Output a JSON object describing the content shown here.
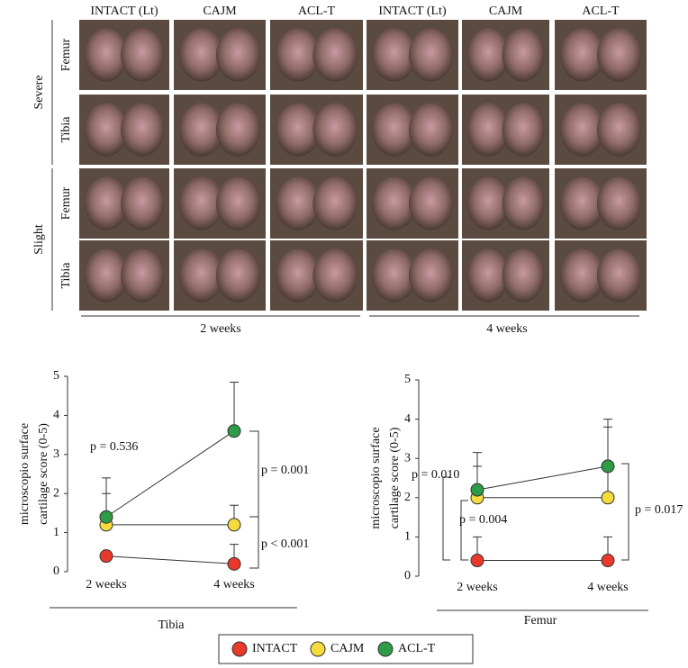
{
  "photo_panel": {
    "columns": [
      "INTACT (Lt)",
      "CAJM",
      "ACL-T",
      "INTACT (Lt)",
      "CAJM",
      "ACL-T"
    ],
    "groups": [
      {
        "label": "Severe",
        "rows": [
          "Femur",
          "Tibia"
        ]
      },
      {
        "label": "Slight",
        "rows": [
          "Femur",
          "Tibia"
        ]
      }
    ],
    "periods": [
      "2 weeks",
      "4 weeks"
    ]
  },
  "legend": [
    "INTACT",
    "CAJM",
    "ACL-T"
  ],
  "chart_data": [
    {
      "type": "line",
      "xlabel": "Tibia",
      "ylabel": [
        "microscopio surface",
        "cartilage score (0-5)"
      ],
      "categories": [
        "2 weeks",
        "4 weeks"
      ],
      "ylim": [
        0,
        5
      ],
      "yticks": [
        0,
        1,
        2,
        3,
        4,
        5
      ],
      "series": [
        {
          "name": "INTACT",
          "color": "#e8392b",
          "values": [
            0.4,
            0.2
          ],
          "errors": [
            0,
            0.5
          ]
        },
        {
          "name": "CAJM",
          "color": "#f5dc3c",
          "values": [
            1.2,
            1.2
          ],
          "errors": [
            0.8,
            0.5
          ]
        },
        {
          "name": "ACL-T",
          "color": "#2e9b47",
          "values": [
            1.4,
            3.6
          ],
          "errors": [
            1.0,
            1.25
          ]
        }
      ],
      "annotations": [
        "p = 0.536",
        "p = 0.001",
        "p < 0.001"
      ]
    },
    {
      "type": "line",
      "xlabel": "Femur",
      "ylabel": [
        "microscopio surface",
        "cartilage score (0-5)"
      ],
      "categories": [
        "2 weeks",
        "4 weeks"
      ],
      "ylim": [
        0,
        5
      ],
      "yticks": [
        0,
        1,
        2,
        3,
        4,
        5
      ],
      "series": [
        {
          "color": "#e8392b",
          "values": [
            0.4,
            0.4
          ],
          "errors": [
            0.6,
            0.6
          ]
        },
        {
          "color": "#f5dc3c",
          "values": [
            2.0,
            2.0
          ],
          "errors": [
            0.8,
            1.8
          ]
        },
        {
          "color": "#2e9b47",
          "values": [
            2.2,
            2.8
          ],
          "errors": [
            0.95,
            1.2
          ]
        }
      ],
      "annotations": [
        "p = 0.010",
        "p = 0.004",
        "p = 0.017"
      ]
    }
  ]
}
